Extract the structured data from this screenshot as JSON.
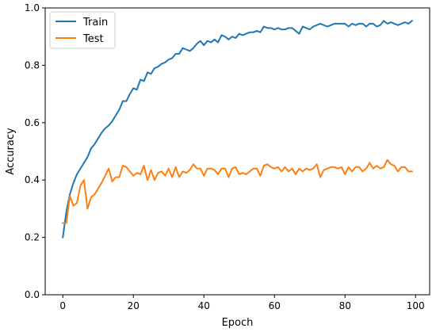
{
  "chart_data": {
    "type": "line",
    "title": "",
    "xlabel": "Epoch",
    "ylabel": "Accuracy",
    "xlim": [
      -5,
      104
    ],
    "ylim": [
      0,
      1.0
    ],
    "xticks": [
      0,
      20,
      40,
      60,
      80,
      100
    ],
    "xtick_labels": [
      "0",
      "20",
      "40",
      "60",
      "80",
      "100"
    ],
    "yticks": [
      0.0,
      0.2,
      0.4,
      0.6,
      0.8,
      1.0
    ],
    "ytick_labels": [
      "0.0",
      "0.2",
      "0.4",
      "0.6",
      "0.8",
      "1.0"
    ],
    "grid": false,
    "legend_position": "top-left",
    "series": [
      {
        "name": "Train",
        "color": "#1f77b4",
        "x": [
          0,
          1,
          2,
          3,
          4,
          5,
          6,
          7,
          8,
          9,
          10,
          11,
          12,
          13,
          14,
          15,
          16,
          17,
          18,
          19,
          20,
          21,
          22,
          23,
          24,
          25,
          26,
          27,
          28,
          29,
          30,
          31,
          32,
          33,
          34,
          35,
          36,
          37,
          38,
          39,
          40,
          41,
          42,
          43,
          44,
          45,
          46,
          47,
          48,
          49,
          50,
          51,
          52,
          53,
          54,
          55,
          56,
          57,
          58,
          59,
          60,
          61,
          62,
          63,
          64,
          65,
          66,
          67,
          68,
          69,
          70,
          71,
          72,
          73,
          74,
          75,
          76,
          77,
          78,
          79,
          80,
          81,
          82,
          83,
          84,
          85,
          86,
          87,
          88,
          89,
          90,
          91,
          92,
          93,
          94,
          95,
          96,
          97,
          98,
          99
        ],
        "y": [
          0.2,
          0.29,
          0.35,
          0.39,
          0.42,
          0.44,
          0.46,
          0.48,
          0.51,
          0.525,
          0.545,
          0.565,
          0.58,
          0.59,
          0.605,
          0.625,
          0.645,
          0.675,
          0.675,
          0.7,
          0.72,
          0.715,
          0.75,
          0.745,
          0.775,
          0.77,
          0.79,
          0.795,
          0.805,
          0.81,
          0.82,
          0.825,
          0.84,
          0.84,
          0.86,
          0.855,
          0.85,
          0.86,
          0.875,
          0.885,
          0.87,
          0.885,
          0.88,
          0.89,
          0.88,
          0.905,
          0.9,
          0.89,
          0.9,
          0.895,
          0.91,
          0.905,
          0.91,
          0.915,
          0.915,
          0.92,
          0.915,
          0.935,
          0.93,
          0.93,
          0.925,
          0.93,
          0.925,
          0.925,
          0.93,
          0.93,
          0.92,
          0.91,
          0.935,
          0.93,
          0.925,
          0.935,
          0.94,
          0.945,
          0.94,
          0.935,
          0.94,
          0.945,
          0.945,
          0.945,
          0.945,
          0.935,
          0.945,
          0.94,
          0.945,
          0.945,
          0.935,
          0.945,
          0.945,
          0.935,
          0.94,
          0.955,
          0.945,
          0.95,
          0.945,
          0.94,
          0.945,
          0.95,
          0.945,
          0.955
        ]
      },
      {
        "name": "Test",
        "color": "#ff7f0e",
        "x": [
          0,
          1,
          2,
          3,
          4,
          5,
          6,
          7,
          8,
          9,
          10,
          11,
          12,
          13,
          14,
          15,
          16,
          17,
          18,
          19,
          20,
          21,
          22,
          23,
          24,
          25,
          26,
          27,
          28,
          29,
          30,
          31,
          32,
          33,
          34,
          35,
          36,
          37,
          38,
          39,
          40,
          41,
          42,
          43,
          44,
          45,
          46,
          47,
          48,
          49,
          50,
          51,
          52,
          53,
          54,
          55,
          56,
          57,
          58,
          59,
          60,
          61,
          62,
          63,
          64,
          65,
          66,
          67,
          68,
          69,
          70,
          71,
          72,
          73,
          74,
          75,
          76,
          77,
          78,
          79,
          80,
          81,
          82,
          83,
          84,
          85,
          86,
          87,
          88,
          89,
          90,
          91,
          92,
          93,
          94,
          95,
          96,
          97,
          98,
          99
        ],
        "y": [
          0.25,
          0.25,
          0.345,
          0.31,
          0.32,
          0.38,
          0.4,
          0.3,
          0.34,
          0.35,
          0.37,
          0.39,
          0.415,
          0.44,
          0.395,
          0.41,
          0.41,
          0.45,
          0.445,
          0.43,
          0.415,
          0.425,
          0.42,
          0.45,
          0.4,
          0.435,
          0.4,
          0.425,
          0.43,
          0.415,
          0.44,
          0.41,
          0.445,
          0.41,
          0.43,
          0.425,
          0.435,
          0.455,
          0.44,
          0.44,
          0.415,
          0.44,
          0.44,
          0.435,
          0.42,
          0.44,
          0.44,
          0.41,
          0.44,
          0.445,
          0.42,
          0.425,
          0.42,
          0.43,
          0.44,
          0.44,
          0.415,
          0.45,
          0.455,
          0.445,
          0.44,
          0.445,
          0.43,
          0.445,
          0.43,
          0.44,
          0.42,
          0.44,
          0.43,
          0.44,
          0.435,
          0.44,
          0.455,
          0.41,
          0.435,
          0.44,
          0.445,
          0.445,
          0.44,
          0.445,
          0.42,
          0.445,
          0.43,
          0.445,
          0.445,
          0.43,
          0.44,
          0.46,
          0.44,
          0.45,
          0.44,
          0.445,
          0.47,
          0.455,
          0.45,
          0.43,
          0.445,
          0.445,
          0.43,
          0.43
        ]
      }
    ]
  }
}
